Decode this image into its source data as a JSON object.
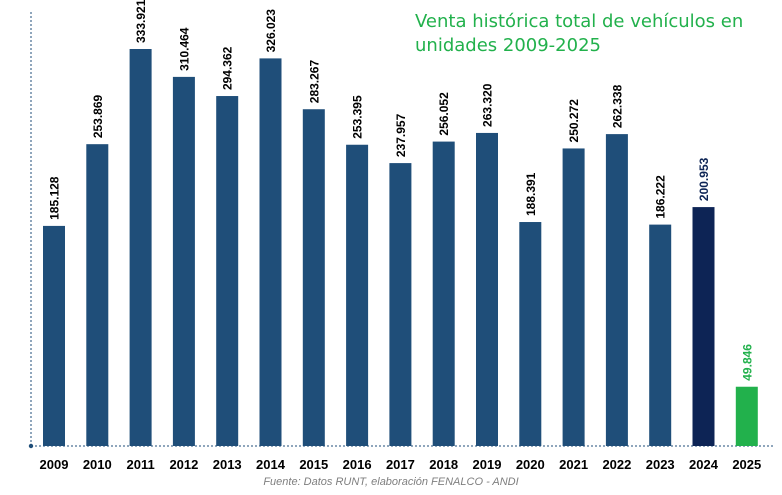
{
  "title_lines": [
    "Venta histórica total de vehículos en",
    "unidades 2009-2025"
  ],
  "source": "Fuente: Datos RUNT, elaboración FENALCO - ANDI",
  "colors": {
    "bar": "#1f4e79",
    "bar_highlight": "#0d2455",
    "bar_partial": "#22b14c",
    "label": "#000000",
    "label_highlight": "#0d2455",
    "label_partial": "#22b14c",
    "title": "#22b14c",
    "axis": "#1f4e79"
  },
  "chart_data": {
    "type": "bar",
    "title": "Venta histórica total de vehículos en unidades 2009-2025",
    "xlabel": "",
    "ylabel": "",
    "categories": [
      "2009",
      "2010",
      "2011",
      "2012",
      "2013",
      "2014",
      "2015",
      "2016",
      "2017",
      "2018",
      "2019",
      "2020",
      "2021",
      "2022",
      "2023",
      "2024",
      "2025"
    ],
    "values": [
      185128,
      253869,
      333921,
      310464,
      294362,
      326023,
      283267,
      253395,
      237957,
      256052,
      263320,
      188391,
      250272,
      262338,
      186222,
      200953,
      49846
    ],
    "data_labels": [
      "185.128",
      "253.869",
      "333.921",
      "310.464",
      "294.362",
      "326.023",
      "283.267",
      "253.395",
      "237.957",
      "256.052",
      "263.320",
      "188.391",
      "250.272",
      "262.338",
      "186.222",
      "200.953",
      "49.846"
    ],
    "highlight_index": 15,
    "partial_index": 16,
    "ylim": [
      0,
      360000
    ],
    "grid": false,
    "legend": "none"
  }
}
